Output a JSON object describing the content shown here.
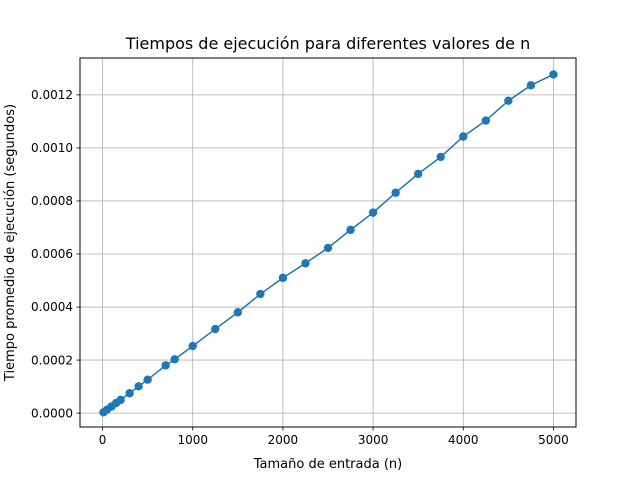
{
  "chart_data": {
    "type": "line",
    "title": "Tiempos de ejecución para diferentes valores de n",
    "xlabel": "Tamaño de entrada (n)",
    "ylabel": "Tiempo promedio de ejecución (segundos)",
    "xlim": [
      -250,
      5250
    ],
    "ylim": [
      -5.23e-05,
      0.001339
    ],
    "x_ticks": [
      0,
      1000,
      2000,
      3000,
      4000,
      5000
    ],
    "x_tick_labels": [
      "0",
      "1000",
      "2000",
      "3000",
      "4000",
      "5000"
    ],
    "y_ticks": [
      0,
      0.0002,
      0.0004,
      0.0006,
      0.0008,
      0.001,
      0.0012
    ],
    "y_tick_labels": [
      "0.0000",
      "0.0002",
      "0.0004",
      "0.0006",
      "0.0008",
      "0.0010",
      "0.0012"
    ],
    "grid": true,
    "marker": "circle",
    "series": [
      {
        "color": "#1f77b4",
        "x": [
          10,
          50,
          100,
          150,
          200,
          300,
          400,
          500,
          700,
          800,
          1000,
          1250,
          1500,
          1750,
          2000,
          2250,
          2500,
          2750,
          3000,
          3250,
          3500,
          3750,
          4000,
          4250,
          4500,
          4750,
          5000
        ],
        "y": [
          3e-06,
          1.3e-05,
          2.5e-05,
          3.8e-05,
          5e-05,
          7.5e-05,
          0.000101,
          0.000126,
          0.00018,
          0.000203,
          0.000253,
          0.000317,
          0.00038,
          0.000449,
          0.00051,
          0.000565,
          0.000623,
          0.000691,
          0.000756,
          0.000831,
          0.000902,
          0.000966,
          0.001043,
          0.001103,
          0.001178,
          0.001236,
          0.001277
        ]
      }
    ]
  }
}
